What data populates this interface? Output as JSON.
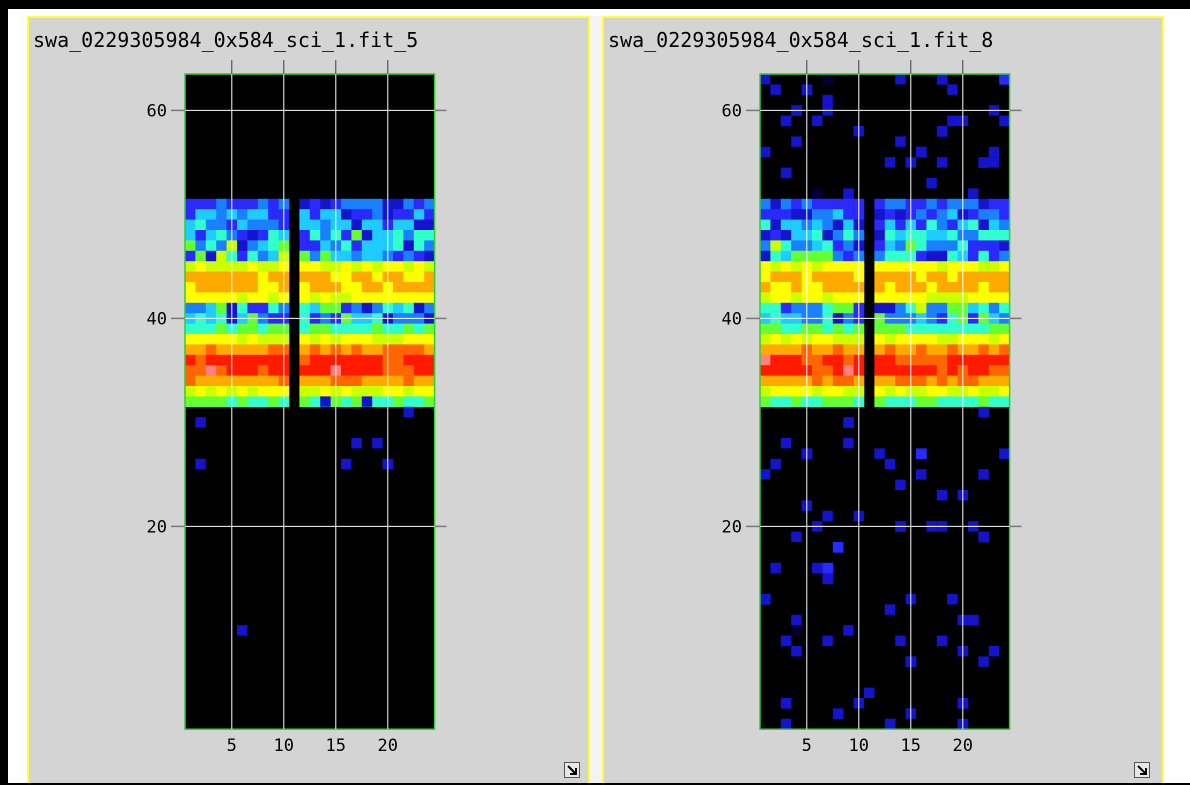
{
  "panels": [
    {
      "title": "swa_0229305984_0x584_sci_1.fit_5",
      "x_ticks": [
        5,
        10,
        15,
        20
      ],
      "y_ticks": [
        60,
        40,
        20
      ],
      "extra_pixels": [
        [
          6,
          10
        ],
        [
          17,
          28
        ],
        [
          19,
          28
        ],
        [
          20,
          26
        ],
        [
          16,
          26
        ],
        [
          2,
          26
        ],
        [
          2,
          30
        ],
        [
          14,
          32
        ],
        [
          18,
          32
        ],
        [
          22,
          31
        ]
      ]
    },
    {
      "title": "swa_0229305984_0x584_sci_1.fit_8",
      "x_ticks": [
        5,
        10,
        15,
        20
      ],
      "y_ticks": [
        60,
        40,
        20
      ],
      "extra_pixels": [
        [
          1,
          63
        ],
        [
          2,
          62
        ],
        [
          4,
          57
        ],
        [
          7,
          61
        ],
        [
          7,
          60
        ],
        [
          14,
          63
        ],
        [
          3,
          59
        ],
        [
          19,
          62
        ],
        [
          20,
          59
        ],
        [
          23,
          60
        ],
        [
          6,
          59
        ],
        [
          10,
          58
        ],
        [
          14,
          57
        ],
        [
          15,
          55
        ],
        [
          17,
          53
        ],
        [
          13,
          55
        ],
        [
          18,
          55
        ],
        [
          21,
          52
        ],
        [
          23,
          55
        ],
        [
          1,
          56
        ],
        [
          16,
          56
        ],
        [
          23,
          56
        ],
        [
          3,
          28
        ],
        [
          2,
          26
        ],
        [
          1,
          25
        ],
        [
          5,
          22
        ],
        [
          7,
          21
        ],
        [
          10,
          21
        ],
        [
          9,
          28
        ],
        [
          12,
          27
        ],
        [
          13,
          26
        ],
        [
          14,
          24
        ],
        [
          16,
          25
        ],
        [
          18,
          23
        ],
        [
          20,
          23
        ],
        [
          17,
          20
        ],
        [
          18,
          20
        ],
        [
          21,
          20
        ],
        [
          22,
          25
        ],
        [
          4,
          19
        ],
        [
          6,
          20
        ],
        [
          2,
          16
        ],
        [
          6,
          16
        ],
        [
          4,
          11
        ],
        [
          7,
          9
        ],
        [
          4,
          8
        ],
        [
          9,
          10
        ],
        [
          11,
          4
        ],
        [
          10,
          3
        ],
        [
          13,
          12
        ],
        [
          15,
          13
        ],
        [
          19,
          13
        ],
        [
          20,
          11
        ],
        [
          14,
          9
        ],
        [
          18,
          9
        ],
        [
          15,
          7
        ],
        [
          20,
          8
        ],
        [
          22,
          7
        ],
        [
          23,
          8
        ],
        [
          3,
          1
        ],
        [
          15,
          2
        ]
      ]
    }
  ],
  "resize_icon": "resize-arrow-icon",
  "colors": {
    "panel_bg": "#d4d4d4",
    "panel_border": "#ffff33",
    "image_border": "#33cc33",
    "grid": "#ffffff",
    "axis_tick": "#777777"
  }
}
